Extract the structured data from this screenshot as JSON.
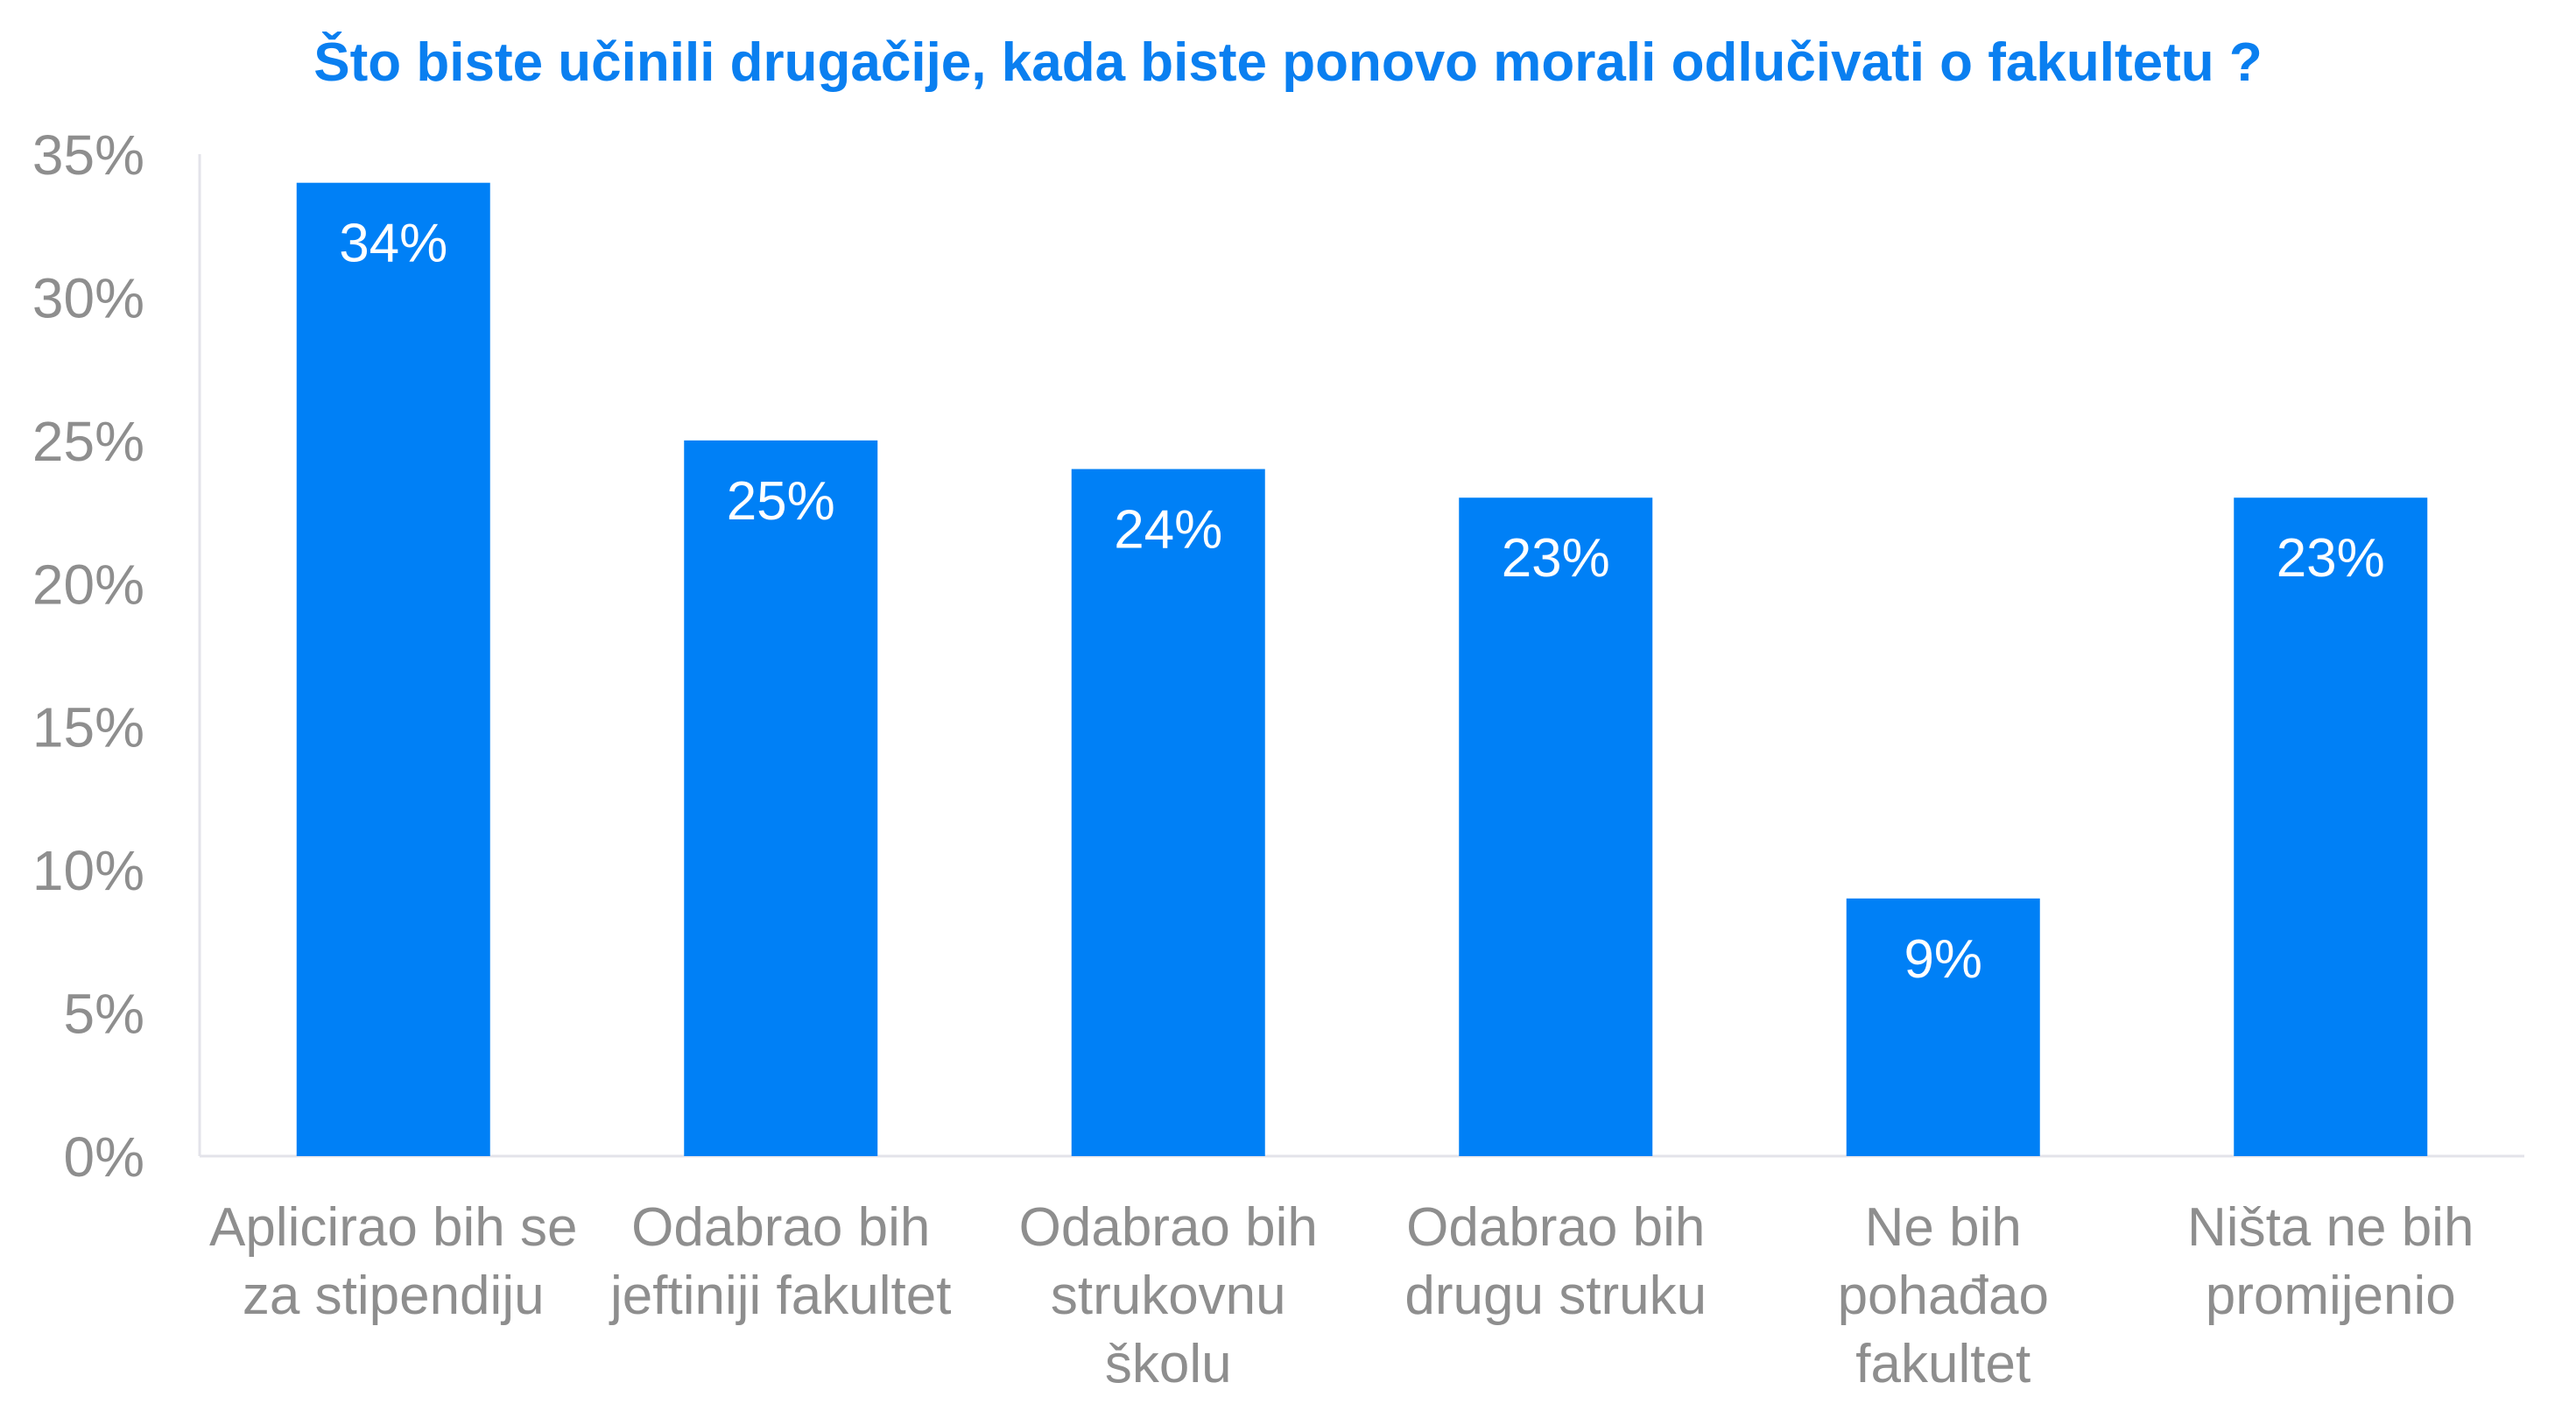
{
  "chart_data": {
    "type": "bar",
    "title": "Što biste učinili drugačije, kada biste ponovo morali odlučivati o fakultetu ?",
    "categories": [
      [
        "Aplicirao bih se",
        "za stipendiju"
      ],
      [
        "Odabrao bih",
        "jeftiniji fakultet"
      ],
      [
        "Odabrao bih",
        "strukovnu",
        "školu"
      ],
      [
        "Odabrao bih",
        "drugu struku"
      ],
      [
        "Ne bih",
        "pohađao",
        "fakultet"
      ],
      [
        "Ništa ne bih",
        "promijenio"
      ]
    ],
    "values": [
      34,
      25,
      24,
      23,
      9,
      23
    ],
    "data_labels": [
      "34%",
      "25%",
      "24%",
      "23%",
      "9%",
      "23%"
    ],
    "ylim": [
      0,
      35
    ],
    "yticks": [
      "0%",
      "5%",
      "10%",
      "15%",
      "20%",
      "25%",
      "30%",
      "35%"
    ],
    "xlabel": "",
    "ylabel": "",
    "grid": false,
    "legend": "none",
    "colors": {
      "bar": "#0080F6",
      "title": "#0A7FF0",
      "axis_text": "#8E8E8E",
      "axis_line": "#E3E3EA"
    }
  }
}
